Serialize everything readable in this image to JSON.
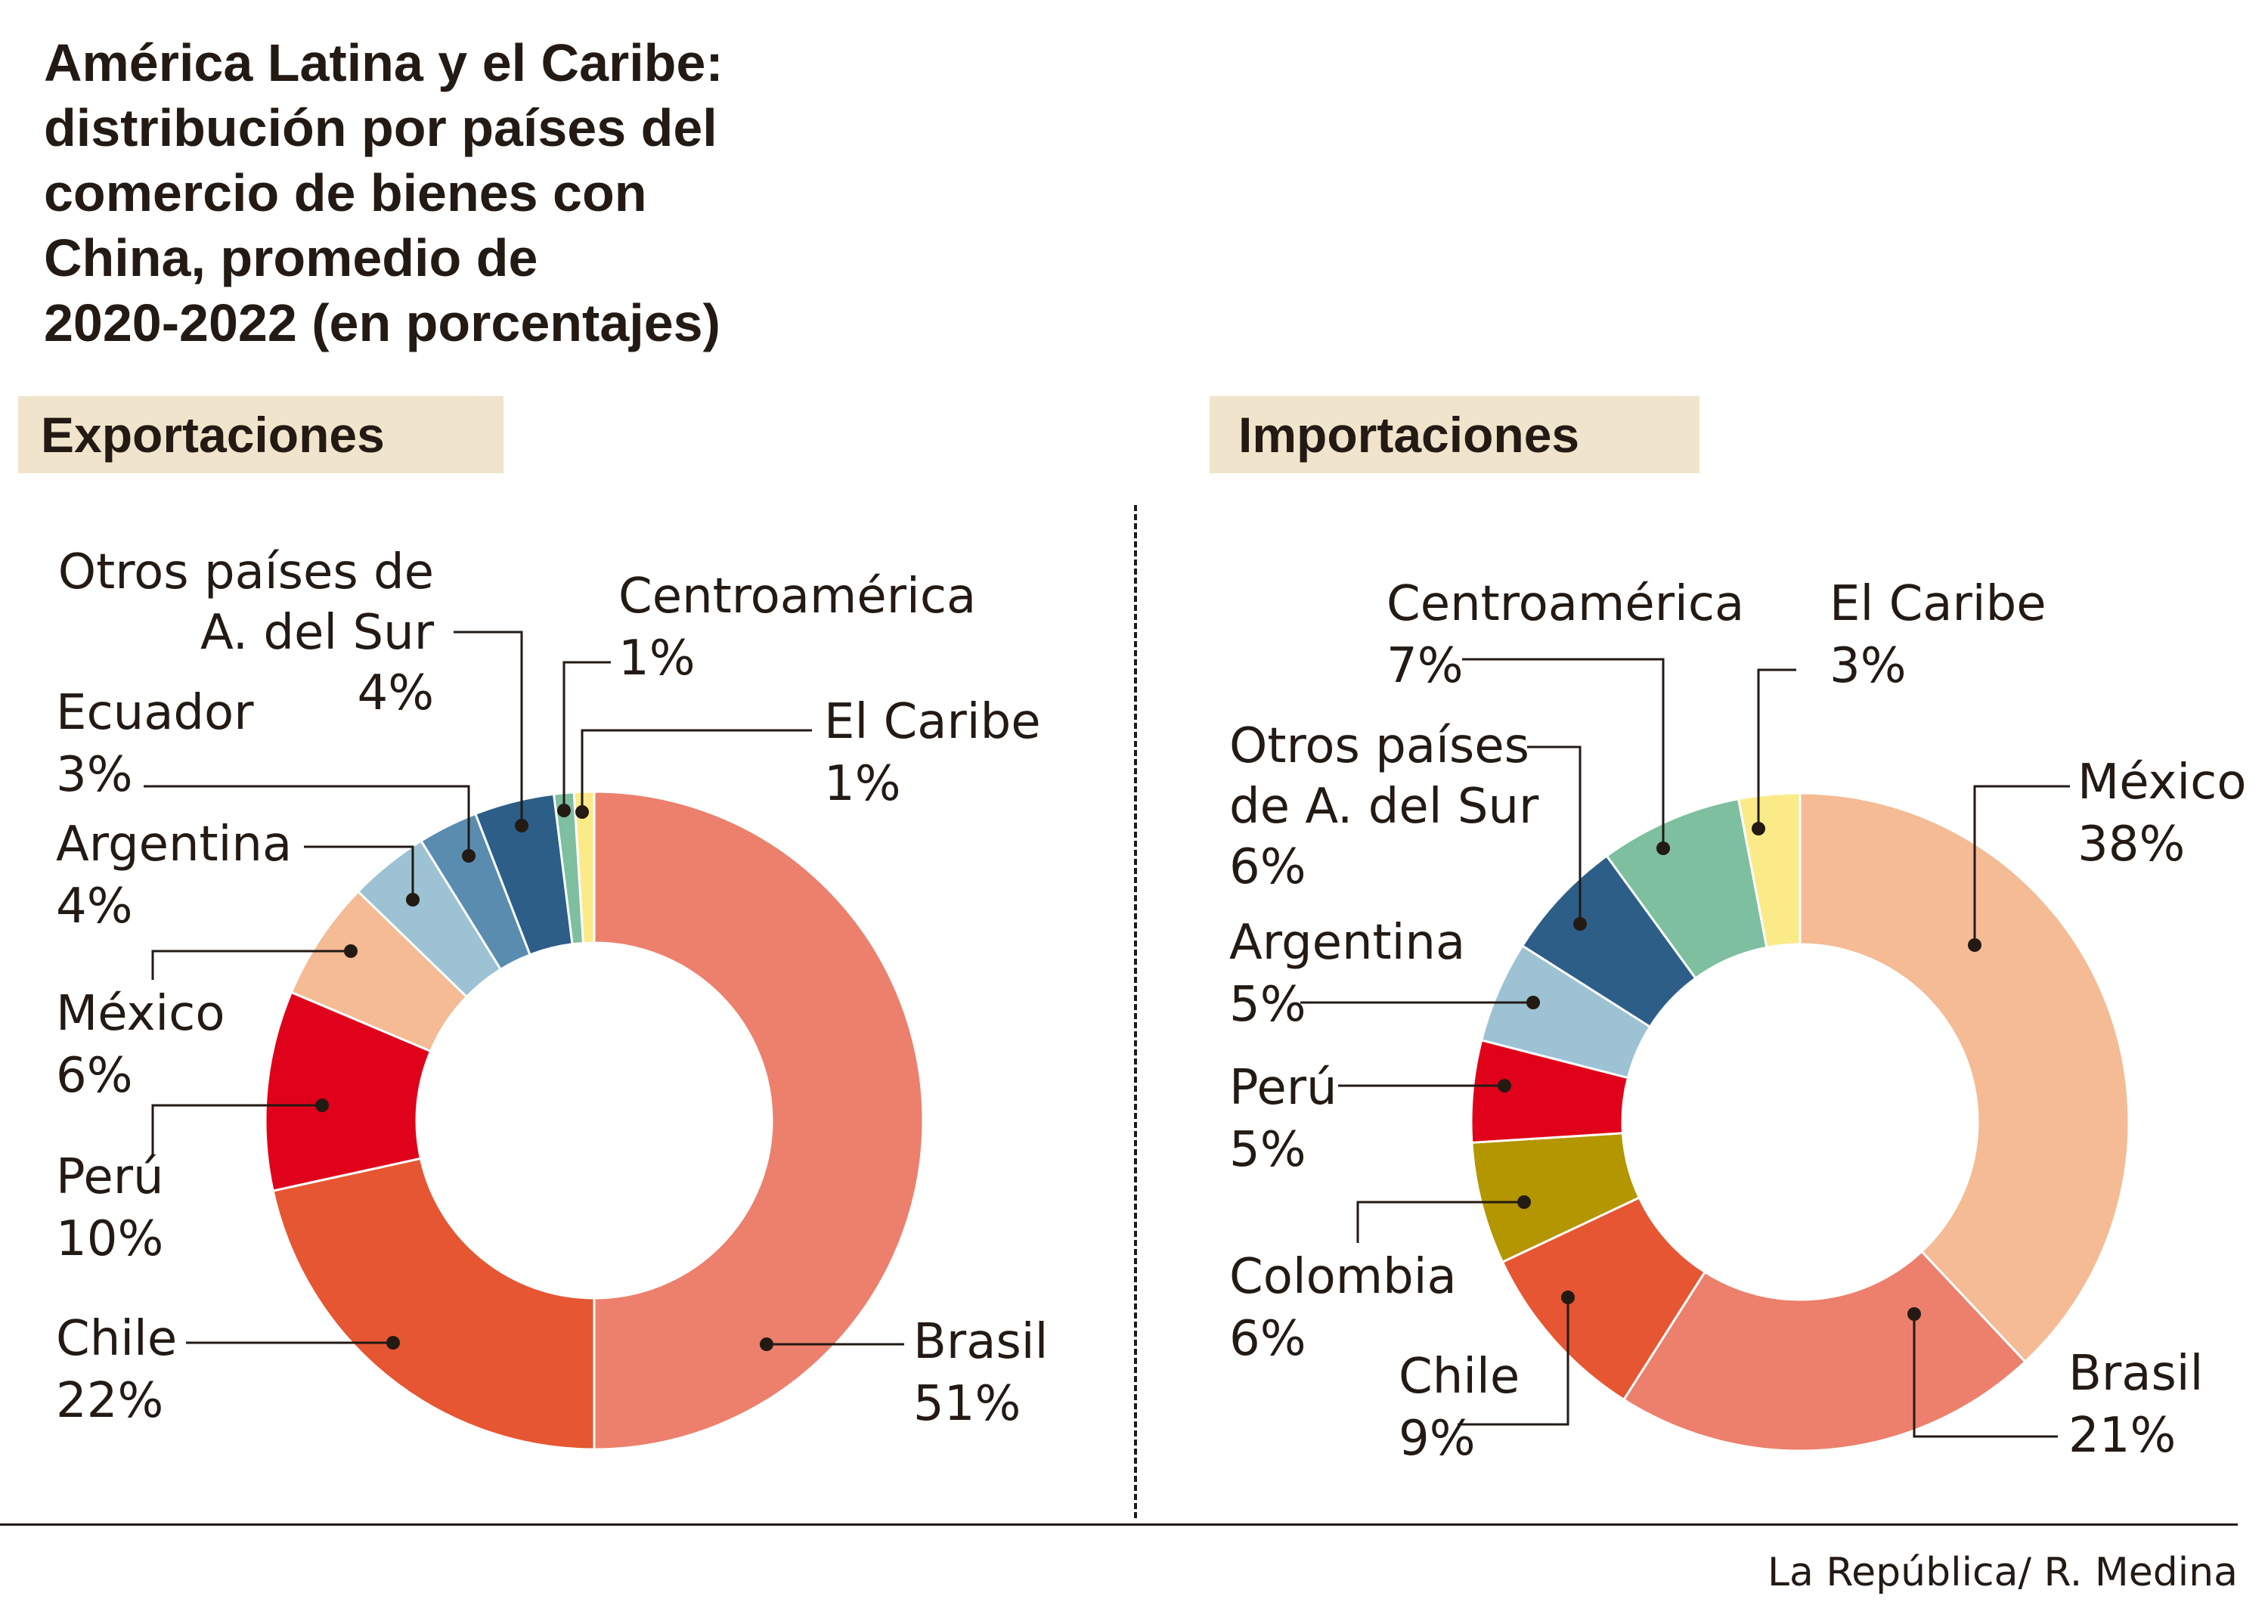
{
  "title_lines": [
    "América Latina y el Caribe:",
    "distribución por países del",
    "comercio de bienes con",
    "China, promedio de",
    "2020-2022 (en porcentajes)"
  ],
  "credit": "La República/ R. Medina",
  "chart_data": [
    {
      "type": "pie",
      "donut": true,
      "title": "Exportaciones",
      "unit": "%",
      "slices": [
        {
          "label": "Brasil",
          "value": 51,
          "color": "#ec806c"
        },
        {
          "label": "Chile",
          "value": 22,
          "color": "#e65632"
        },
        {
          "label": "Perú",
          "value": 10,
          "color": "#e0021a"
        },
        {
          "label": "México",
          "value": 6,
          "color": "#f4bb94"
        },
        {
          "label": "Argentina",
          "value": 4,
          "color": "#9cc2d4"
        },
        {
          "label": "Ecuador",
          "value": 3,
          "color": "#5a8cb0"
        },
        {
          "label": "Otros países de A. del Sur",
          "value": 4,
          "color": "#2c5e88"
        },
        {
          "label": "Centroamérica",
          "value": 1,
          "color": "#7dbf9f"
        },
        {
          "label": "El Caribe",
          "value": 1,
          "color": "#fbea88"
        }
      ]
    },
    {
      "type": "pie",
      "donut": true,
      "title": "Importaciones",
      "unit": "%",
      "slices": [
        {
          "label": "México",
          "value": 38,
          "color": "#f4bb94"
        },
        {
          "label": "Brasil",
          "value": 21,
          "color": "#ec806c"
        },
        {
          "label": "Chile",
          "value": 9,
          "color": "#e65632"
        },
        {
          "label": "Colombia",
          "value": 6,
          "color": "#b39600"
        },
        {
          "label": "Perú",
          "value": 5,
          "color": "#e0021a"
        },
        {
          "label": "Argentina",
          "value": 5,
          "color": "#9cc2d4"
        },
        {
          "label": "Otros países de A. del Sur",
          "value": 6,
          "color": "#2c5e88"
        },
        {
          "label": "Centroamérica",
          "value": 7,
          "color": "#7dbf9f"
        },
        {
          "label": "El Caribe",
          "value": 3,
          "color": "#fbea88"
        }
      ]
    }
  ],
  "labels": {
    "exp": {
      "brasil": [
        "Brasil",
        "51%"
      ],
      "chile": [
        "Chile",
        "22%"
      ],
      "peru": [
        "Perú",
        "10%"
      ],
      "mexico": [
        "México",
        "6%"
      ],
      "argentina": [
        "Argentina",
        "4%"
      ],
      "ecuador": [
        "Ecuador",
        "3%"
      ],
      "otros": [
        "Otros países de",
        "A. del Sur",
        "4%"
      ],
      "centro": [
        "Centroamérica",
        "1%"
      ],
      "caribe": [
        "El Caribe",
        "1%"
      ]
    },
    "imp": {
      "mexico": [
        "México",
        "38%"
      ],
      "brasil": [
        "Brasil",
        "21%"
      ],
      "chile": [
        "Chile",
        "9%"
      ],
      "colombia": [
        "Colombia",
        "6%"
      ],
      "peru": [
        "Perú",
        "5%"
      ],
      "argentina": [
        "Argentina",
        "5%"
      ],
      "otros": [
        "Otros países",
        "de A. del Sur",
        "6%"
      ],
      "centro": [
        "Centroamérica",
        "7%"
      ],
      "caribe": [
        "El Caribe",
        "3%"
      ]
    }
  }
}
